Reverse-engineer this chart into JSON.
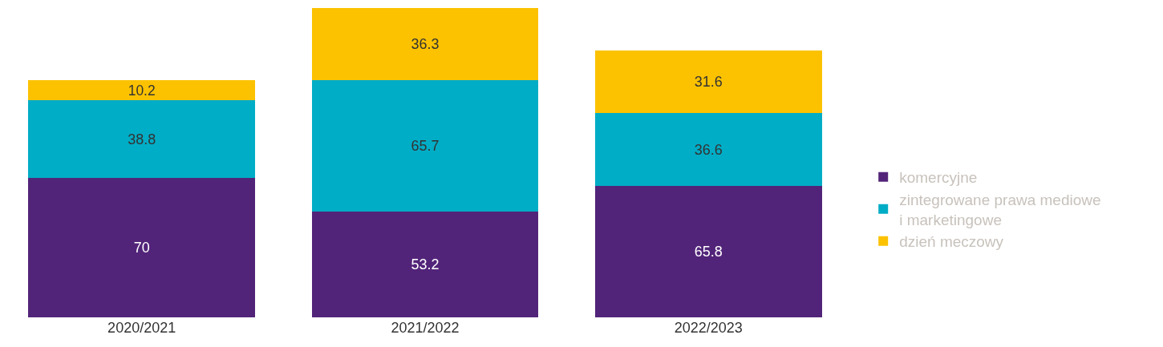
{
  "chart_data": {
    "type": "bar",
    "stacked": true,
    "categories": [
      "2020/2021",
      "2021/2022",
      "2022/2023"
    ],
    "series": [
      {
        "name": "komercyjne",
        "color": "#522479",
        "values": [
          70,
          53.2,
          65.8
        ]
      },
      {
        "name": "zintegrowane prawa mediowe i marketingowe",
        "color": "#00adc6",
        "values": [
          38.8,
          65.7,
          36.6
        ]
      },
      {
        "name": "dzień meczowy",
        "color": "#fcc200",
        "values": [
          10.2,
          36.3,
          31.6
        ]
      }
    ],
    "data_labels": true,
    "legend": "right"
  }
}
